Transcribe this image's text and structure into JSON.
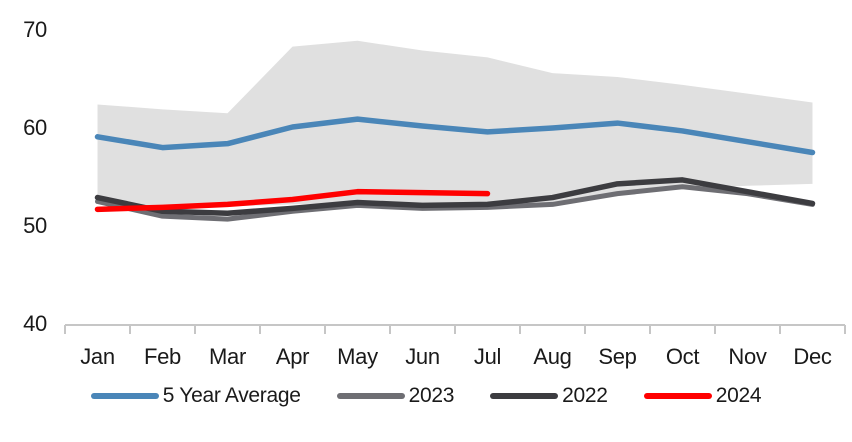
{
  "chart_data": {
    "type": "line",
    "categories": [
      "Jan",
      "Feb",
      "Mar",
      "Apr",
      "May",
      "Jun",
      "Jul",
      "Aug",
      "Sep",
      "Oct",
      "Nov",
      "Dec"
    ],
    "series": [
      {
        "name": "5 Year Average",
        "color": "#4A86B8",
        "width": 5.5,
        "values": [
          59.0,
          57.9,
          58.3,
          60.0,
          60.8,
          60.1,
          59.5,
          59.9,
          60.4,
          59.6,
          58.5,
          57.4
        ]
      },
      {
        "name": "2023",
        "color": "#6E6E73",
        "width": 5,
        "values": [
          52.4,
          50.9,
          50.6,
          51.4,
          52.0,
          51.7,
          51.8,
          52.1,
          53.2,
          53.9,
          53.2,
          52.1
        ]
      },
      {
        "name": "2022",
        "color": "#3C3C40",
        "width": 5.5,
        "values": [
          52.8,
          51.4,
          51.2,
          51.7,
          52.3,
          52.0,
          52.1,
          52.8,
          54.2,
          54.6,
          53.4,
          52.2
        ]
      },
      {
        "name": "2024",
        "color": "#FF0000",
        "width": 5.5,
        "values": [
          51.6,
          51.8,
          52.1,
          52.6,
          53.4,
          53.3,
          53.2
        ]
      }
    ],
    "band": {
      "color": "#E0E0E0",
      "high": [
        62.3,
        61.8,
        61.4,
        68.2,
        68.8,
        67.8,
        67.1,
        65.5,
        65.1,
        64.3,
        63.4,
        62.5
      ],
      "low": [
        52.3,
        51.8,
        51.9,
        52.1,
        52.3,
        52.1,
        52.1,
        52.3,
        53.0,
        53.7,
        54.0,
        54.2
      ]
    },
    "y_axis": {
      "min": 40,
      "max": 70,
      "ticks": [
        40,
        50,
        60,
        70
      ]
    },
    "x_axis": {
      "tick_count": 13
    },
    "grid": false,
    "legend_position": "bottom",
    "axis_color": "#C6C6C6",
    "text_color": "#1a1a1a"
  }
}
